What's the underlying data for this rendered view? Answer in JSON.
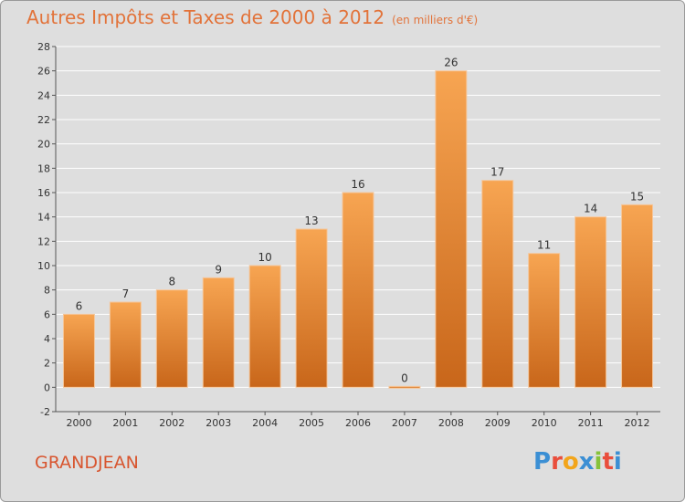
{
  "title": "Autres Impôts et Taxes de 2000 à 2012",
  "subtitle": "(en milliers d'€)",
  "commune": "GRANDJEAN",
  "logo": {
    "letters": [
      "P",
      "r",
      "o",
      "x",
      "i",
      "t",
      "i"
    ],
    "colors": [
      "#3b8fd4",
      "#e94e3c",
      "#f2a51b",
      "#3b8fd4",
      "#86c23a",
      "#e94e3c",
      "#3b8fd4"
    ]
  },
  "colors": {
    "bar_light": "#f7a552",
    "bar_dark": "#c8661a",
    "title": "#e2733a",
    "grid": "#ffffff",
    "background": "#dedede"
  },
  "chart_data": {
    "type": "bar",
    "categories": [
      "2000",
      "2001",
      "2002",
      "2003",
      "2004",
      "2005",
      "2006",
      "2007",
      "2008",
      "2009",
      "2010",
      "2011",
      "2012"
    ],
    "values": [
      6,
      7,
      8,
      9,
      10,
      13,
      16,
      0,
      26,
      17,
      11,
      14,
      15
    ],
    "data_labels": [
      "6",
      "7",
      "8",
      "9",
      "10",
      "13",
      "16",
      "0",
      "26",
      "17",
      "11",
      "14",
      "15"
    ],
    "title": "Autres Impôts et Taxes de 2000 à 2012",
    "ylim": [
      -2,
      28
    ],
    "yticks": [
      -2,
      0,
      2,
      4,
      6,
      8,
      10,
      12,
      14,
      16,
      18,
      20,
      22,
      24,
      26,
      28
    ],
    "grid": true,
    "legend": "none"
  }
}
